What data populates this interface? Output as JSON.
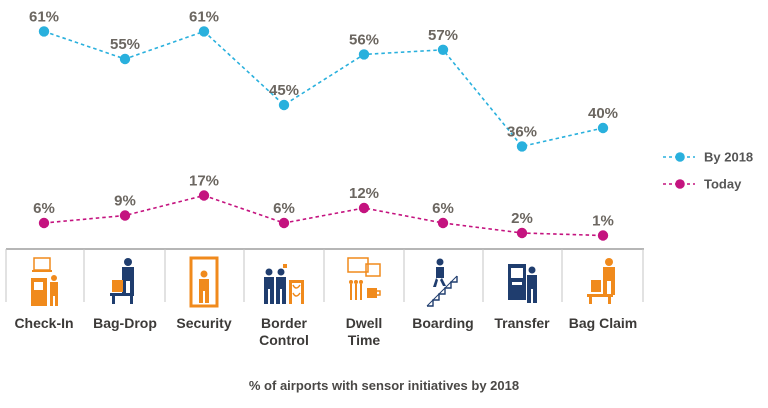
{
  "chart_data": {
    "type": "line",
    "title": "% of airports with sensor initiatives by 2018",
    "categories": [
      [
        "Check-In"
      ],
      [
        "Bag-Drop"
      ],
      [
        "Security"
      ],
      [
        "Border",
        "Control"
      ],
      [
        "Dwell",
        "Time"
      ],
      [
        "Boarding"
      ],
      [
        "Transfer"
      ],
      [
        "Bag Claim"
      ]
    ],
    "series": [
      {
        "name": "By 2018",
        "values": [
          61,
          55,
          61,
          45,
          56,
          57,
          36,
          40
        ],
        "labels": [
          "61%",
          "55%",
          "61%",
          "45%",
          "56%",
          "57%",
          "36%",
          "40%"
        ],
        "color": "#29b0dd"
      },
      {
        "name": "Today",
        "values": [
          6,
          9,
          17,
          6,
          12,
          6,
          2,
          1
        ],
        "labels": [
          "6%",
          "9%",
          "17%",
          "6%",
          "12%",
          "6%",
          "2%",
          "1%"
        ],
        "color": "#c4137f"
      }
    ],
    "legend": "right",
    "grid": false
  },
  "icons": [
    "check-in-icon",
    "bag-drop-icon",
    "security-icon",
    "border-control-icon",
    "dwell-time-icon",
    "boarding-icon",
    "transfer-icon",
    "bag-claim-icon"
  ],
  "colors": {
    "accent_orange": "#f08a1c",
    "navy": "#1f3d6e",
    "axis": "#9e9e9e"
  }
}
